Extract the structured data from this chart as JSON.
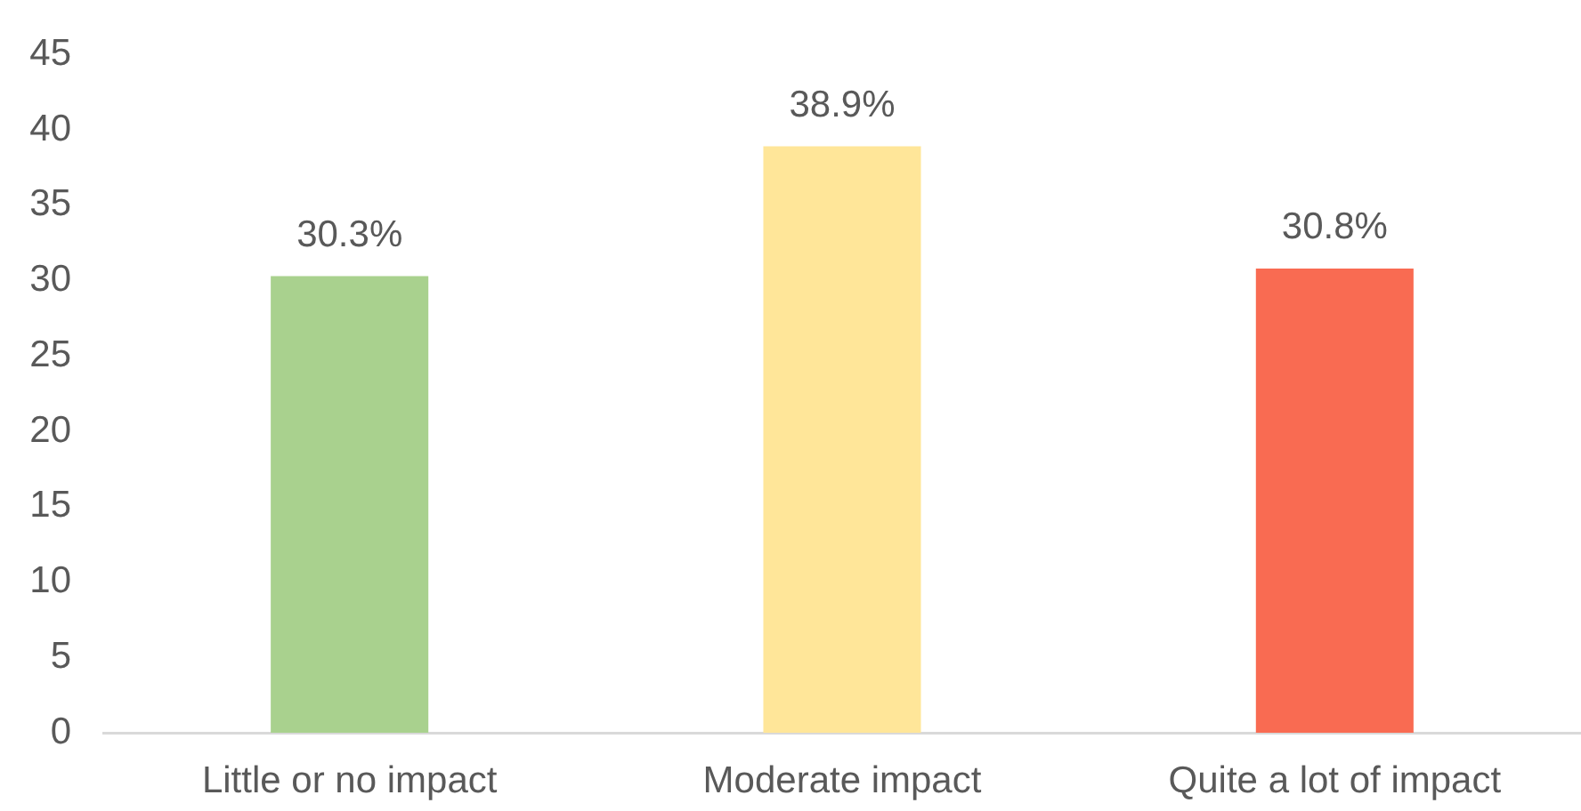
{
  "chart_data": {
    "type": "bar",
    "categories": [
      "Little or no impact",
      "Moderate impact",
      "Quite a lot of impact"
    ],
    "values": [
      30.3,
      38.9,
      30.8
    ],
    "colors": [
      "#a9d18e",
      "#ffe699",
      "#f96b52"
    ],
    "value_labels": [
      "30.3%",
      "38.9%",
      "30.8%"
    ],
    "ylim": [
      0,
      45
    ],
    "yticks": [
      0,
      5,
      10,
      15,
      20,
      25,
      30,
      35,
      40,
      45
    ]
  }
}
